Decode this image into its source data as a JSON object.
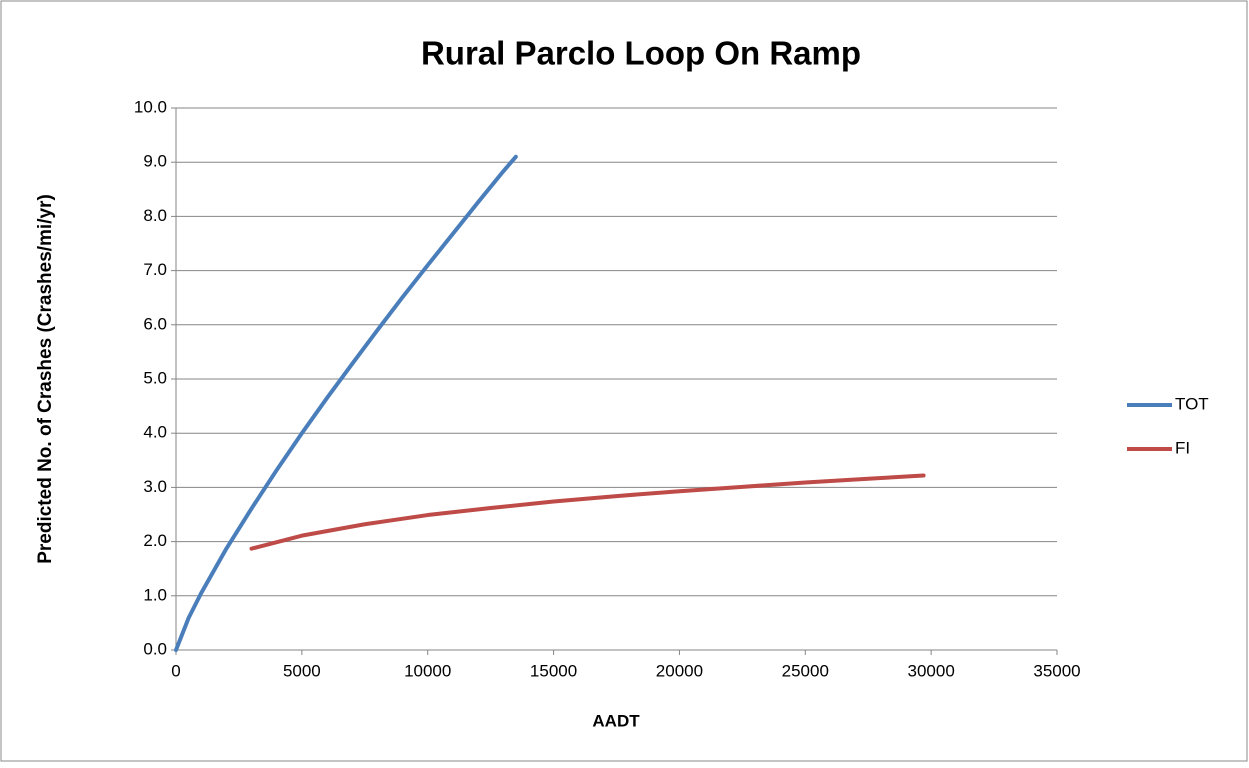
{
  "chart_data": {
    "type": "line",
    "title": "Rural Parclo Loop On Ramp",
    "xlabel": "AADT",
    "ylabel": "Predicted No. of Crashes (Crashes/mi/yr)",
    "series": [
      {
        "name": "TOT",
        "color": "#4a7ebb",
        "x": [
          0,
          500,
          1000,
          2000,
          3000,
          4000,
          5000,
          6000,
          7000,
          8000,
          9000,
          10000,
          11000,
          12000,
          13000,
          13500
        ],
        "values": [
          0,
          0.59,
          1.05,
          1.87,
          2.61,
          3.32,
          4.0,
          4.65,
          5.28,
          5.9,
          6.51,
          7.1,
          7.68,
          8.26,
          8.83,
          9.1
        ]
      },
      {
        "name": "FI",
        "color": "#be4b48",
        "x": [
          3000,
          5000,
          7500,
          10000,
          12500,
          15000,
          17500,
          20000,
          22500,
          25000,
          27500,
          29700
        ],
        "values": [
          1.87,
          2.11,
          2.32,
          2.49,
          2.62,
          2.74,
          2.84,
          2.93,
          3.01,
          3.09,
          3.16,
          3.22
        ]
      }
    ],
    "xlim": [
      0,
      35000
    ],
    "xticks": [
      0,
      5000,
      10000,
      15000,
      20000,
      25000,
      30000,
      35000
    ],
    "ylim": [
      0,
      10
    ],
    "yticks": [
      {
        "value": 0,
        "label": "0.0"
      },
      {
        "value": 1,
        "label": "1.0"
      },
      {
        "value": 2,
        "label": "2.0"
      },
      {
        "value": 3,
        "label": "3.0"
      },
      {
        "value": 4,
        "label": "4.0"
      },
      {
        "value": 5,
        "label": "5.0"
      },
      {
        "value": 6,
        "label": "6.0"
      },
      {
        "value": 7,
        "label": "7.0"
      },
      {
        "value": 8,
        "label": "8.0"
      },
      {
        "value": 9,
        "label": "9.0"
      },
      {
        "value": 10,
        "label": "10.0"
      }
    ],
    "grid": true,
    "legend": "right"
  }
}
